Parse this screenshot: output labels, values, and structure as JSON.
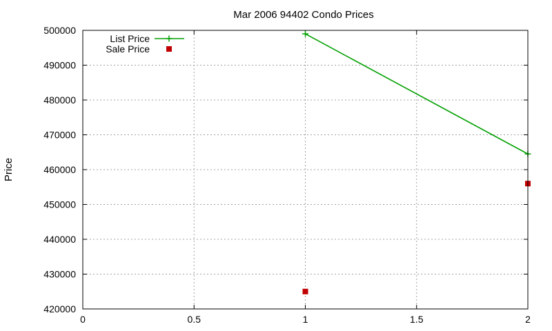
{
  "chart_data": {
    "type": "line",
    "title": "Mar 2006 94402 Condo Prices",
    "xlabel": "",
    "ylabel": "Price",
    "xlim": [
      0,
      2
    ],
    "ylim": [
      420000,
      500000
    ],
    "x_ticks": [
      0,
      0.5,
      1,
      1.5,
      2
    ],
    "x_tick_labels": [
      "0",
      "0.5",
      "1",
      "1.5",
      "2"
    ],
    "y_ticks": [
      420000,
      430000,
      440000,
      450000,
      460000,
      470000,
      480000,
      490000,
      500000
    ],
    "y_tick_labels": [
      "420000",
      "430000",
      "440000",
      "450000",
      "460000",
      "470000",
      "480000",
      "490000",
      "500000"
    ],
    "grid": true,
    "legend_position": "top-left",
    "series": [
      {
        "name": "List Price",
        "style": "linespoints",
        "marker": "plus",
        "color": "#00a000",
        "x": [
          1,
          2
        ],
        "y": [
          499000,
          464500
        ]
      },
      {
        "name": "Sale Price",
        "style": "points",
        "marker": "square",
        "color": "#c00000",
        "x": [
          1,
          2
        ],
        "y": [
          425000,
          456000
        ]
      }
    ]
  }
}
